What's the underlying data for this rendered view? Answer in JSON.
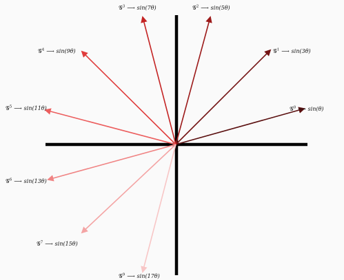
{
  "vectors": [
    {
      "gen": "𝒢",
      "sup": "0",
      "arrow": "⟶",
      "expr": "sin(θ)",
      "color": "#5a0f0f"
    },
    {
      "gen": "𝒢",
      "sup": "1",
      "arrow": "⟶",
      "expr": "sin(3θ)",
      "color": "#741414"
    },
    {
      "gen": "𝒢",
      "sup": "2",
      "arrow": "⟶",
      "expr": "sin(5θ)",
      "color": "#9c1a1a"
    },
    {
      "gen": "𝒢",
      "sup": "3",
      "arrow": "⟶",
      "expr": "sin(7θ)",
      "color": "#c42424"
    },
    {
      "gen": "𝒢",
      "sup": "4",
      "arrow": "⟶",
      "expr": "sin(9θ)",
      "color": "#e03c3c"
    },
    {
      "gen": "𝒢",
      "sup": "5",
      "arrow": "⟶",
      "expr": "sin(11θ)",
      "color": "#ec5e5e"
    },
    {
      "gen": "𝒢",
      "sup": "6",
      "arrow": "⟶",
      "expr": "sin(13θ)",
      "color": "#f08484"
    },
    {
      "gen": "𝒢",
      "sup": "7",
      "arrow": "⟶",
      "expr": "sin(15θ)",
      "color": "#f4a4a4"
    },
    {
      "gen": "𝒢",
      "sup": "9",
      "arrow": "⟶",
      "expr": "sin(17θ)",
      "color": "#f8c6c6"
    }
  ],
  "axis_color": "#000000"
}
